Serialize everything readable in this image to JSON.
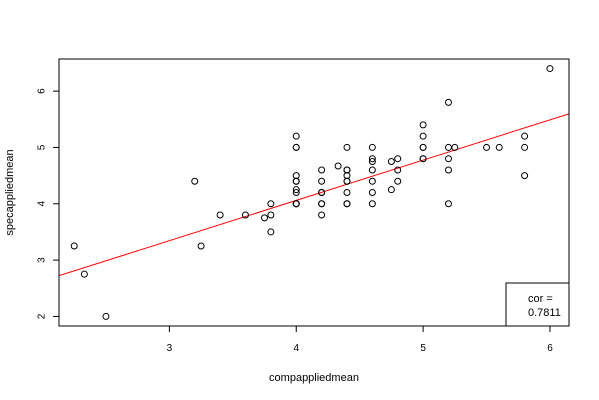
{
  "chart_data": {
    "type": "scatter",
    "xlabel": "compappliedmean",
    "ylabel": "specappliedmean",
    "xlim": [
      2.13,
      6.15
    ],
    "ylim": [
      1.83,
      6.57
    ],
    "x_ticks": [
      3,
      4,
      5,
      6
    ],
    "y_ticks": [
      2,
      3,
      4,
      5,
      6
    ],
    "x_tick_labels": [
      "3",
      "4",
      "5",
      "6"
    ],
    "y_tick_labels": [
      "2",
      "3",
      "4",
      "5",
      "6"
    ],
    "grid": false,
    "point_color": "#000000",
    "fit_line_color": "#ff0000",
    "fit_line": {
      "intercept": 1.2,
      "slope": 0.715
    },
    "legend": {
      "position": "bottom-right",
      "label": "cor =",
      "value": "0.7811"
    },
    "points": [
      [
        2.25,
        3.25
      ],
      [
        2.33,
        2.75
      ],
      [
        2.5,
        2.0
      ],
      [
        3.2,
        4.4
      ],
      [
        3.25,
        3.25
      ],
      [
        3.4,
        3.8
      ],
      [
        3.6,
        3.8
      ],
      [
        3.75,
        3.75
      ],
      [
        3.8,
        3.8
      ],
      [
        3.8,
        4.0
      ],
      [
        3.8,
        3.5
      ],
      [
        4.0,
        5.2
      ],
      [
        4.0,
        5.0
      ],
      [
        4.0,
        5.0
      ],
      [
        4.0,
        4.5
      ],
      [
        4.0,
        4.4
      ],
      [
        4.0,
        4.4
      ],
      [
        4.0,
        4.25
      ],
      [
        4.0,
        4.2
      ],
      [
        4.0,
        4.0
      ],
      [
        4.0,
        4.0
      ],
      [
        4.0,
        4.0
      ],
      [
        4.2,
        4.6
      ],
      [
        4.2,
        4.4
      ],
      [
        4.2,
        4.2
      ],
      [
        4.2,
        4.2
      ],
      [
        4.2,
        4.0
      ],
      [
        4.2,
        4.0
      ],
      [
        4.2,
        3.8
      ],
      [
        4.33,
        4.67
      ],
      [
        4.4,
        5.0
      ],
      [
        4.4,
        4.6
      ],
      [
        4.4,
        4.6
      ],
      [
        4.4,
        4.5
      ],
      [
        4.4,
        4.4
      ],
      [
        4.4,
        4.4
      ],
      [
        4.4,
        4.2
      ],
      [
        4.4,
        4.0
      ],
      [
        4.4,
        4.0
      ],
      [
        4.6,
        5.0
      ],
      [
        4.6,
        4.8
      ],
      [
        4.6,
        4.75
      ],
      [
        4.6,
        4.6
      ],
      [
        4.6,
        4.4
      ],
      [
        4.6,
        4.2
      ],
      [
        4.6,
        4.0
      ],
      [
        4.75,
        4.75
      ],
      [
        4.75,
        4.25
      ],
      [
        4.8,
        4.8
      ],
      [
        4.8,
        4.6
      ],
      [
        4.8,
        4.4
      ],
      [
        5.0,
        5.4
      ],
      [
        5.0,
        5.2
      ],
      [
        5.0,
        5.0
      ],
      [
        5.0,
        5.0
      ],
      [
        5.0,
        4.8
      ],
      [
        5.0,
        4.8
      ],
      [
        5.2,
        5.8
      ],
      [
        5.2,
        5.0
      ],
      [
        5.2,
        4.8
      ],
      [
        5.2,
        4.6
      ],
      [
        5.2,
        4.0
      ],
      [
        5.25,
        5.0
      ],
      [
        5.5,
        5.0
      ],
      [
        5.6,
        5.0
      ],
      [
        5.8,
        5.2
      ],
      [
        5.8,
        5.0
      ],
      [
        5.8,
        4.5
      ],
      [
        6.0,
        6.4
      ]
    ]
  }
}
